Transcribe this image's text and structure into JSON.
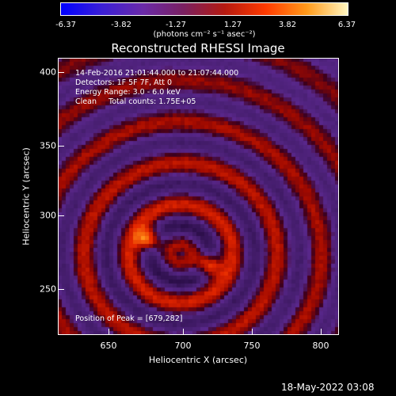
{
  "colorbar": {
    "ticks": [
      "-6.37",
      "-3.82",
      "-1.27",
      "1.27",
      "3.82",
      "6.37"
    ],
    "units_text": "(photons cm⁻² s⁻¹ asec⁻²)",
    "colors": [
      "#0000ff",
      "#3b1fd6",
      "#6a2aa8",
      "#7a2060",
      "#b51a10",
      "#ff3a00",
      "#ff9a1a",
      "#fff6c0"
    ]
  },
  "title": "Reconstructed RHESSI Image",
  "info": {
    "line1": "14-Feb-2016 21:01:44.000 to 21:07:44.000",
    "line2": "Detectors: 1F 5F 7F, Att 0",
    "line3": "Energy Range: 3.0 - 6.0 keV",
    "line4": "Clean     Total counts: 1.75E+05",
    "peak": "Position of Peak = [679,282]"
  },
  "axes": {
    "xlabel": "Heliocentric X (arcsec)",
    "ylabel": "Heliocentric Y (arcsec)",
    "xticks": [
      "650",
      "700",
      "750",
      "800"
    ],
    "yticks": [
      "400",
      "350",
      "300",
      "250"
    ]
  },
  "timestamp": "18-May-2022 03:08"
}
